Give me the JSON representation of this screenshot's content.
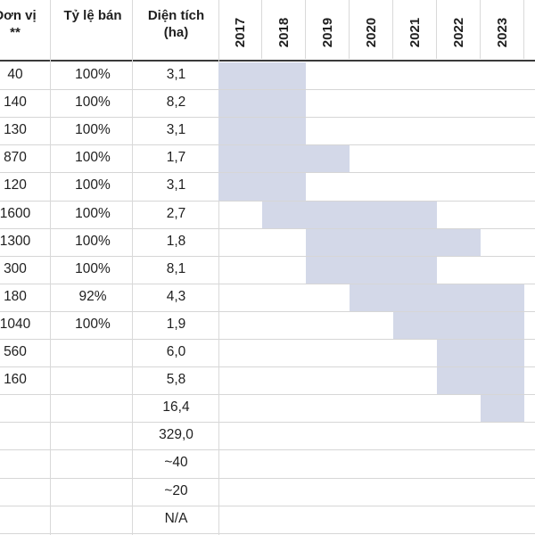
{
  "headers": {
    "units": "Đơn vị\n**",
    "sale_rate": "Tỷ lệ bán",
    "area": "Diện tích\n(ha)"
  },
  "years": [
    "2017",
    "2018",
    "2019",
    "2020",
    "2021",
    "2022",
    "2023"
  ],
  "rows": [
    {
      "units": "40",
      "sale_rate": "100%",
      "area": "3,1",
      "start": 2017,
      "end": 2018
    },
    {
      "units": "140",
      "sale_rate": "100%",
      "area": "8,2",
      "start": 2017,
      "end": 2018
    },
    {
      "units": "130",
      "sale_rate": "100%",
      "area": "3,1",
      "start": 2017,
      "end": 2018
    },
    {
      "units": "870",
      "sale_rate": "100%",
      "area": "1,7",
      "start": 2017,
      "end": 2019
    },
    {
      "units": "120",
      "sale_rate": "100%",
      "area": "3,1",
      "start": 2017,
      "end": 2018
    },
    {
      "units": "1600",
      "sale_rate": "100%",
      "area": "2,7",
      "start": 2018,
      "end": 2021
    },
    {
      "units": "1300",
      "sale_rate": "100%",
      "area": "1,8",
      "start": 2019,
      "end": 2022
    },
    {
      "units": "300",
      "sale_rate": "100%",
      "area": "8,1",
      "start": 2019,
      "end": 2021
    },
    {
      "units": "180",
      "sale_rate": "92%",
      "area": "4,3",
      "start": 2020,
      "end": 2023
    },
    {
      "units": "1040",
      "sale_rate": "100%",
      "area": "1,9",
      "start": 2021,
      "end": 2023
    },
    {
      "units": "560",
      "sale_rate": "",
      "area": "6,0",
      "start": 2022,
      "end": 2023
    },
    {
      "units": "160",
      "sale_rate": "",
      "area": "5,8",
      "start": 2022,
      "end": 2023
    },
    {
      "units": "",
      "sale_rate": "",
      "area": "16,4",
      "start": 2023,
      "end": 2023
    },
    {
      "units": "",
      "sale_rate": "",
      "area": "329,0",
      "start": null,
      "end": null
    },
    {
      "units": "",
      "sale_rate": "",
      "area": "~40",
      "start": null,
      "end": null
    },
    {
      "units": "",
      "sale_rate": "",
      "area": "~20",
      "start": null,
      "end": null
    },
    {
      "units": "",
      "sale_rate": "",
      "area": "N/A",
      "start": null,
      "end": null
    }
  ],
  "colors": {
    "bar": "#d3d8e8",
    "grid": "#d6d6d6",
    "header_rule": "#3a3a3a"
  }
}
